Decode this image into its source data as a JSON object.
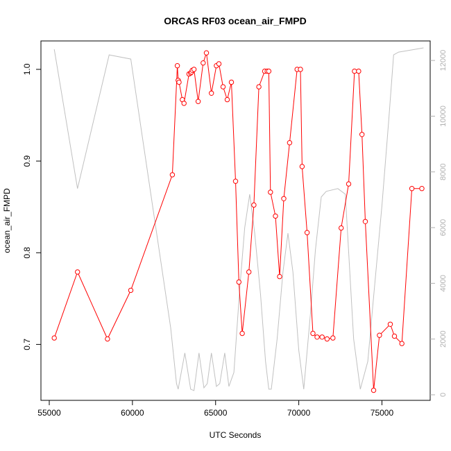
{
  "chart_data": {
    "type": "line",
    "title": "ORCAS RF03 ocean_air_FMPD",
    "xlabel": "UTC Seconds",
    "ylabel": "ocean_air_FMPD",
    "xlim": [
      54500,
      77900
    ],
    "ylim": [
      0.639,
      1.031
    ],
    "y2lim": [
      -200,
      12700
    ],
    "x_ticks": [
      55000,
      60000,
      65000,
      70000,
      75000
    ],
    "y_ticks": [
      0.7,
      0.8,
      0.9,
      1.0
    ],
    "y2_ticks": [
      0,
      2000,
      4000,
      6000,
      8000,
      10000,
      12000
    ],
    "x_tick_labels": [
      "55000",
      "60000",
      "65000",
      "70000",
      "75000"
    ],
    "y_tick_labels": [
      "0.7",
      "0.8",
      "0.9",
      "1.0"
    ],
    "y2_tick_labels": [
      "0",
      "2000",
      "4000",
      "6000",
      "8000",
      "10000",
      "12000"
    ],
    "grid": false,
    "series": [
      {
        "axis": "left",
        "style": "line-with-open-circles",
        "color": "#ff0000",
        "x": [
          55300,
          56700,
          58500,
          59900,
          62400,
          62700,
          62750,
          62800,
          63000,
          63100,
          63400,
          63500,
          63550,
          63600,
          63700,
          63950,
          64250,
          64450,
          64750,
          65050,
          65200,
          65450,
          65700,
          65950,
          66200,
          66400,
          66600,
          67000,
          67300,
          67600,
          67950,
          68100,
          68200,
          68300,
          68600,
          68850,
          69100,
          69450,
          69900,
          70100,
          70200,
          70500,
          70850,
          71100,
          71400,
          71700,
          72050,
          72550,
          73000,
          73350,
          73600,
          73800,
          74000,
          74500,
          74850,
          75500,
          75750,
          76200,
          76800,
          77400
        ],
        "y": [
          0.707,
          0.779,
          0.706,
          0.759,
          0.885,
          1.004,
          0.988,
          0.986,
          0.967,
          0.963,
          0.995,
          0.996,
          0.997,
          0.999,
          1.0,
          0.965,
          1.007,
          1.018,
          0.974,
          1.004,
          1.006,
          0.981,
          0.967,
          0.986,
          0.878,
          0.768,
          0.712,
          0.779,
          0.852,
          0.981,
          0.998,
          0.998,
          0.998,
          0.866,
          0.84,
          0.774,
          0.859,
          0.92,
          1.0,
          1.0,
          0.894,
          0.822,
          0.712,
          0.708,
          0.708,
          0.706,
          0.707,
          0.827,
          0.875,
          0.998,
          0.998,
          0.929,
          0.834,
          0.65,
          0.71,
          0.722,
          0.709,
          0.701,
          0.87,
          0.87
        ]
      },
      {
        "axis": "right",
        "style": "line",
        "color": "#c0c0c0",
        "x": [
          55300,
          56700,
          58600,
          59900,
          62300,
          62650,
          62750,
          63150,
          63500,
          63700,
          64000,
          64300,
          64500,
          64750,
          65050,
          65250,
          65550,
          65800,
          66100,
          66450,
          66750,
          67050,
          67350,
          67700,
          68000,
          68200,
          68350,
          68700,
          69050,
          69350,
          69650,
          70000,
          70300,
          70700,
          71000,
          71350,
          71650,
          72350,
          72800,
          73300,
          73700,
          74150,
          74450,
          75000,
          75400,
          75700,
          76000,
          76500,
          77500
        ],
        "y": [
          12400,
          7400,
          12200,
          12050,
          2400,
          400,
          200,
          1500,
          200,
          150,
          1500,
          250,
          400,
          1500,
          300,
          400,
          1500,
          300,
          800,
          3800,
          6000,
          7200,
          5800,
          3600,
          1200,
          200,
          200,
          2000,
          4400,
          5800,
          4400,
          1600,
          200,
          2900,
          5200,
          7100,
          7300,
          7400,
          7200,
          2000,
          200,
          1200,
          3200,
          6800,
          9800,
          12200,
          12300,
          12350,
          12450
        ]
      }
    ]
  }
}
